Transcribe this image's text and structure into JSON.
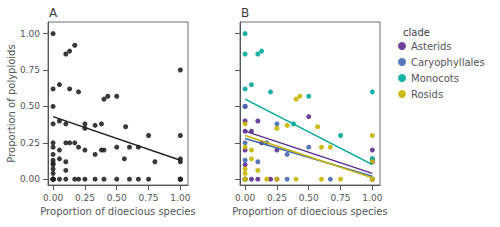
{
  "chart_data": [
    {
      "type": "scatter",
      "title": "A",
      "x_label": "Proportion of dioecious species",
      "y_label": "Proportion of polyploids",
      "xlim": [
        -0.04,
        1.06
      ],
      "ylim": [
        -0.04,
        1.08
      ],
      "xticks": [
        {
          "value": 0.0,
          "label": "0.00"
        },
        0.25,
        {
          "value": 0.5,
          "label": "0.50"
        },
        0.75,
        {
          "value": 1.0,
          "label": "1.00"
        }
      ],
      "yticks": [
        {
          "value": 0.0,
          "label": "0.00"
        },
        0.25,
        {
          "value": 0.5,
          "label": "0.50"
        },
        0.75,
        {
          "value": 1.0,
          "label": "1.00"
        }
      ],
      "grid": false,
      "series": [
        {
          "type": "scatter",
          "color": "#222222",
          "x": [
            0.0,
            0.0,
            0.0,
            0.0,
            0.0,
            0.0,
            0.0,
            0.0,
            0.0,
            0.0,
            0.0,
            0.0,
            0.0,
            0.0,
            0.0,
            0.0,
            0.0,
            0.0,
            0.0,
            0.05,
            0.05,
            0.05,
            0.05,
            0.05,
            0.1,
            0.1,
            0.1,
            0.1,
            0.1,
            0.1,
            0.13,
            0.13,
            0.13,
            0.17,
            0.17,
            0.17,
            0.2,
            0.2,
            0.2,
            0.25,
            0.25,
            0.25,
            0.25,
            0.33,
            0.33,
            0.33,
            0.38,
            0.38,
            0.4,
            0.4,
            0.4,
            0.43,
            0.5,
            0.5,
            0.5,
            0.56,
            0.57,
            0.6,
            0.6,
            0.67,
            0.67,
            0.75,
            0.75,
            0.8,
            1.0,
            1.0,
            1.0,
            1.0,
            1.0,
            1.0,
            1.0,
            1.0
          ],
          "values": [
            0.0,
            0.0,
            0.0,
            0.0,
            0.0,
            0.0,
            0.0,
            0.04,
            0.07,
            0.1,
            0.11,
            0.13,
            0.17,
            0.22,
            0.25,
            0.38,
            0.5,
            0.62,
            1.0,
            0.0,
            0.14,
            0.2,
            0.4,
            0.65,
            0.0,
            0.06,
            0.12,
            0.25,
            0.38,
            0.86,
            0.25,
            0.62,
            0.88,
            0.0,
            0.25,
            0.92,
            0.0,
            0.22,
            0.6,
            0.0,
            0.2,
            0.35,
            0.38,
            0.0,
            0.17,
            0.37,
            0.2,
            0.38,
            0.0,
            0.2,
            0.55,
            0.57,
            0.0,
            0.22,
            0.57,
            0.14,
            0.36,
            0.0,
            0.22,
            0.0,
            0.22,
            0.0,
            0.3,
            0.12,
            0.0,
            0.0,
            0.0,
            0.0,
            0.12,
            0.14,
            0.3,
            0.75
          ]
        },
        {
          "type": "line",
          "color": "#222222",
          "x": [
            0.0,
            1.0
          ],
          "values": [
            0.43,
            0.13
          ]
        }
      ]
    },
    {
      "type": "scatter",
      "title": "B",
      "x_label": "Proportion of dioecious species",
      "xlim": [
        -0.04,
        1.06
      ],
      "ylim": [
        -0.04,
        1.08
      ],
      "xticks": [
        {
          "value": 0.0,
          "label": "0.00"
        },
        0.25,
        {
          "value": 0.5,
          "label": "0.50"
        },
        0.75,
        {
          "value": 1.0,
          "label": "1.00"
        }
      ],
      "yticks": [
        0.0,
        0.25,
        0.5,
        0.75,
        1.0
      ],
      "tick_labels": "x",
      "grid": false,
      "legend": "right",
      "legend_title": "clade",
      "series": [
        {
          "type": "scatter",
          "name": "Asterids",
          "color": "#5B2D8E",
          "x": [
            0.0,
            0.0,
            0.0,
            0.0,
            0.0,
            0.0,
            0.0,
            0.05,
            0.05,
            0.1,
            0.1,
            0.13,
            0.2,
            0.25,
            0.25,
            0.5,
            1.0,
            1.0,
            1.0
          ],
          "values": [
            0.0,
            0.0,
            0.1,
            0.2,
            0.33,
            0.4,
            0.5,
            0.0,
            0.33,
            0.0,
            0.4,
            0.25,
            0.0,
            0.0,
            0.2,
            0.43,
            0.0,
            0.12,
            0.2
          ]
        },
        {
          "type": "scatter",
          "name": "Caryophyllales",
          "color": "#4169B0",
          "x": [
            0.0,
            0.0,
            0.0,
            0.0,
            0.1,
            0.17,
            0.25,
            0.33,
            0.33,
            0.5,
            0.67,
            1.0,
            1.0
          ],
          "values": [
            0.0,
            0.13,
            0.25,
            0.5,
            0.12,
            0.25,
            0.38,
            0.0,
            0.17,
            0.22,
            0.0,
            0.0,
            0.14
          ]
        },
        {
          "type": "scatter",
          "name": "Monocots",
          "color": "#00A89C",
          "x": [
            0.0,
            0.0,
            0.0,
            0.0,
            0.05,
            0.1,
            0.13,
            0.2,
            0.38,
            0.5,
            0.75,
            1.0,
            1.0
          ],
          "values": [
            0.0,
            0.62,
            0.86,
            1.0,
            0.65,
            0.86,
            0.88,
            0.6,
            0.38,
            0.57,
            0.3,
            0.14,
            0.6
          ]
        },
        {
          "type": "scatter",
          "name": "Rosids",
          "color": "#C8B400",
          "x": [
            0.0,
            0.0,
            0.0,
            0.0,
            0.0,
            0.0,
            0.05,
            0.05,
            0.1,
            0.17,
            0.25,
            0.25,
            0.33,
            0.4,
            0.4,
            0.43,
            0.57,
            0.6,
            0.6,
            0.67,
            0.75,
            1.0,
            1.0,
            1.0,
            1.0
          ],
          "values": [
            0.0,
            0.0,
            0.04,
            0.07,
            0.22,
            0.38,
            0.14,
            0.2,
            0.06,
            0.0,
            0.0,
            0.35,
            0.37,
            0.0,
            0.55,
            0.57,
            0.36,
            0.0,
            0.22,
            0.22,
            0.0,
            0.0,
            0.0,
            0.12,
            0.3
          ]
        },
        {
          "type": "line",
          "color": "#00A89C",
          "x": [
            0.0,
            1.0
          ],
          "values": [
            0.55,
            0.1
          ]
        },
        {
          "type": "line",
          "color": "#5B2D8E",
          "x": [
            0.0,
            1.0
          ],
          "values": [
            0.33,
            0.04
          ]
        },
        {
          "type": "line",
          "color": "#4169B0",
          "x": [
            0.0,
            1.0
          ],
          "values": [
            0.28,
            0.02
          ]
        },
        {
          "type": "line",
          "color": "#C8B400",
          "x": [
            0.0,
            1.0
          ],
          "values": [
            0.3,
            0.01
          ]
        }
      ]
    }
  ]
}
